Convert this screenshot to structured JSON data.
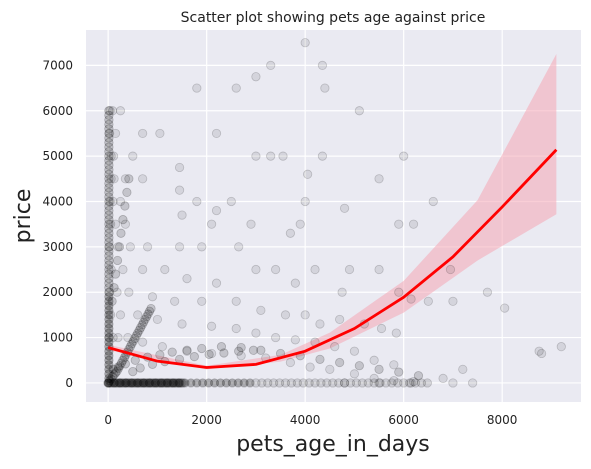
{
  "chart_data": {
    "type": "scatter",
    "title": "Scatter plot showing pets age against price",
    "xlabel": "pets_age_in_days",
    "ylabel": "price",
    "xlim": [
      -450,
      9600
    ],
    "ylim": [
      -420,
      7780
    ],
    "xticks": [
      0,
      2000,
      4000,
      6000,
      8000
    ],
    "yticks": [
      0,
      1000,
      2000,
      3000,
      4000,
      5000,
      6000,
      7000
    ],
    "xtick_labels": [
      "0",
      "2000",
      "4000",
      "6000",
      "8000"
    ],
    "ytick_labels": [
      "0",
      "1000",
      "2000",
      "3000",
      "4000",
      "5000",
      "6000",
      "7000"
    ],
    "grid": true,
    "background_color": "#eaeaf2",
    "grid_color": "#ffffff",
    "point_color": "#000000",
    "point_alpha": 0.09,
    "fit_color": "#ff0000",
    "band_color": "#f4a6b4",
    "fit": {
      "kind": "quadratic",
      "x_range": [
        0,
        9100
      ],
      "points": [
        [
          0,
          780
        ],
        [
          1000,
          480
        ],
        [
          2000,
          340
        ],
        [
          3000,
          410
        ],
        [
          4000,
          700
        ],
        [
          5000,
          1200
        ],
        [
          6000,
          1890
        ],
        [
          7000,
          2780
        ],
        [
          8000,
          3880
        ],
        [
          9100,
          5140
        ]
      ]
    },
    "confidence_band": {
      "points": [
        [
          0,
          720,
          840
        ],
        [
          2000,
          300,
          380
        ],
        [
          3500,
          470,
          620
        ],
        [
          4500,
          760,
          1110
        ],
        [
          6000,
          1550,
          2250
        ],
        [
          7500,
          2700,
          4030
        ],
        [
          9100,
          3720,
          7250
        ]
      ]
    },
    "points": [
      [
        40,
        6000
      ],
      [
        90,
        6000
      ],
      [
        250,
        6000
      ],
      [
        30,
        5500
      ],
      [
        150,
        5500
      ],
      [
        700,
        5500
      ],
      [
        1050,
        5500
      ],
      [
        60,
        5000
      ],
      [
        110,
        5000
      ],
      [
        500,
        5000
      ],
      [
        1450,
        4750
      ],
      [
        2200,
        5500
      ],
      [
        3000,
        6750
      ],
      [
        3300,
        7000
      ],
      [
        4000,
        7500
      ],
      [
        4350,
        7000
      ],
      [
        4400,
        6500
      ],
      [
        2600,
        6500
      ],
      [
        1800,
        6500
      ],
      [
        5100,
        6000
      ],
      [
        60,
        4500
      ],
      [
        120,
        4500
      ],
      [
        350,
        4500
      ],
      [
        700,
        4500
      ],
      [
        1450,
        4250
      ],
      [
        3300,
        5000
      ],
      [
        3550,
        5000
      ],
      [
        3000,
        5000
      ],
      [
        4050,
        4600
      ],
      [
        4350,
        5000
      ],
      [
        6000,
        5000
      ],
      [
        40,
        4000
      ],
      [
        100,
        4000
      ],
      [
        250,
        4000
      ],
      [
        1800,
        4000
      ],
      [
        2200,
        3800
      ],
      [
        2500,
        4000
      ],
      [
        4000,
        4000
      ],
      [
        4800,
        3850
      ],
      [
        5500,
        4500
      ],
      [
        6600,
        4000
      ],
      [
        50,
        3500
      ],
      [
        150,
        3500
      ],
      [
        350,
        3500
      ],
      [
        1500,
        3700
      ],
      [
        2100,
        3500
      ],
      [
        2900,
        3500
      ],
      [
        3700,
        3300
      ],
      [
        3900,
        3500
      ],
      [
        5900,
        3500
      ],
      [
        6200,
        3500
      ],
      [
        30,
        3000
      ],
      [
        200,
        3000
      ],
      [
        450,
        3000
      ],
      [
        800,
        3000
      ],
      [
        1450,
        3000
      ],
      [
        1900,
        3000
      ],
      [
        2650,
        3000
      ],
      [
        3000,
        2500
      ],
      [
        3400,
        2500
      ],
      [
        4200,
        2500
      ],
      [
        4900,
        2500
      ],
      [
        5500,
        2500
      ],
      [
        6950,
        2500
      ],
      [
        60,
        2500
      ],
      [
        300,
        2500
      ],
      [
        700,
        2500
      ],
      [
        1150,
        2500
      ],
      [
        1600,
        2300
      ],
      [
        2200,
        2200
      ],
      [
        3800,
        2200
      ],
      [
        4750,
        2000
      ],
      [
        5900,
        2000
      ],
      [
        7000,
        1800
      ],
      [
        7700,
        2000
      ],
      [
        8050,
        1650
      ],
      [
        6500,
        1800
      ],
      [
        6150,
        1850
      ],
      [
        30,
        2000
      ],
      [
        180,
        2000
      ],
      [
        420,
        2000
      ],
      [
        900,
        1900
      ],
      [
        1350,
        1800
      ],
      [
        1900,
        1800
      ],
      [
        2600,
        1800
      ],
      [
        3100,
        1600
      ],
      [
        3600,
        1500
      ],
      [
        4000,
        1500
      ],
      [
        4300,
        1300
      ],
      [
        4700,
        1400
      ],
      [
        5200,
        1300
      ],
      [
        5550,
        1200
      ],
      [
        5850,
        1100
      ],
      [
        50,
        1500
      ],
      [
        250,
        1500
      ],
      [
        600,
        1500
      ],
      [
        1000,
        1400
      ],
      [
        1500,
        1300
      ],
      [
        2100,
        1250
      ],
      [
        2600,
        1200
      ],
      [
        3000,
        1100
      ],
      [
        3400,
        1000
      ],
      [
        3800,
        950
      ],
      [
        4200,
        900
      ],
      [
        4600,
        800
      ],
      [
        5000,
        700
      ],
      [
        5400,
        500
      ],
      [
        5800,
        400
      ],
      [
        20,
        1000
      ],
      [
        100,
        1000
      ],
      [
        200,
        1000
      ],
      [
        400,
        1000
      ],
      [
        700,
        900
      ],
      [
        1100,
        800
      ],
      [
        1600,
        700
      ],
      [
        2100,
        650
      ],
      [
        2700,
        600
      ],
      [
        3200,
        550
      ],
      [
        3700,
        450
      ],
      [
        4100,
        350
      ],
      [
        4500,
        300
      ],
      [
        5000,
        200
      ],
      [
        5400,
        100
      ],
      [
        5800,
        50
      ],
      [
        6200,
        30
      ],
      [
        6800,
        100
      ],
      [
        7000,
        0
      ],
      [
        7200,
        300
      ],
      [
        8750,
        700
      ],
      [
        8800,
        650
      ],
      [
        9200,
        800
      ],
      [
        4800,
        0
      ],
      [
        6150,
        0
      ],
      [
        5500,
        0
      ],
      [
        7400,
        0
      ]
    ]
  }
}
